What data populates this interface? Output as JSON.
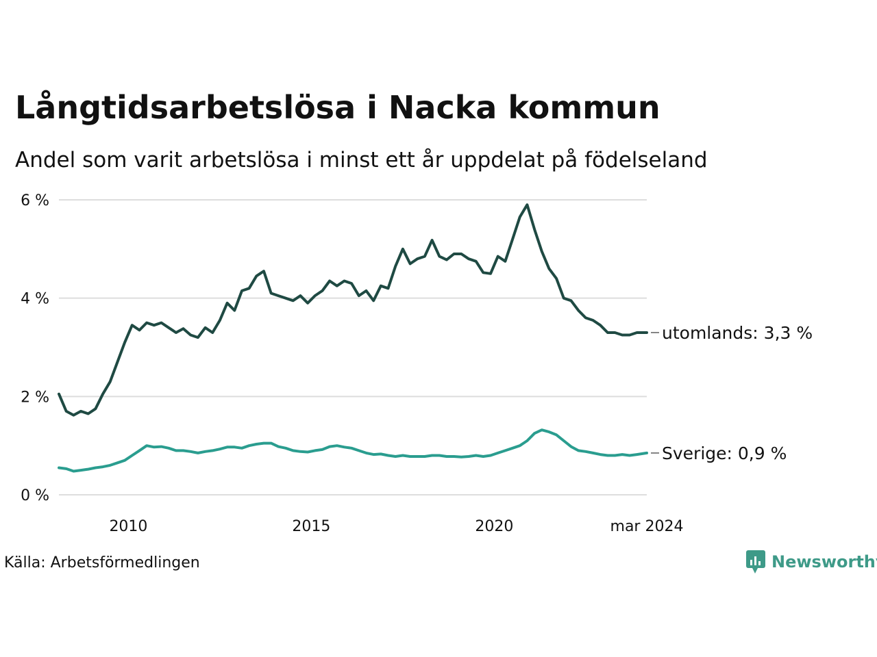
{
  "title": "Långtidsarbetslösa i Nacka kommun",
  "subtitle": "Andel som varit arbetslösa i minst ett år uppdelat på födelseland",
  "source": "Källa: Arbetsförmedlingen",
  "brand": "Newsworthy",
  "colors": {
    "utomlands": "#1f4a43",
    "sverige": "#2a9d8f",
    "grid": "#dddddd",
    "brand": "#3e9a88"
  },
  "chart_data": {
    "type": "line",
    "title": "Långtidsarbetslösa i Nacka kommun",
    "ylabel": "",
    "xlabel": "",
    "ylim": [
      0,
      6
    ],
    "xlim": [
      2008.1,
      2024.17
    ],
    "y_ticks": [
      "0 %",
      "2 %",
      "4 %",
      "6 %"
    ],
    "y_tick_values": [
      0,
      2,
      4,
      6
    ],
    "x_ticks": [
      "2010",
      "2015",
      "2020",
      "mar 2024"
    ],
    "x_tick_values": [
      2010.0,
      2015.0,
      2020.0,
      2024.17
    ],
    "grid": true,
    "series": [
      {
        "name": "utomlands",
        "label": "utomlands: 3,3 %",
        "x": [
          2008.1,
          2008.3,
          2008.5,
          2008.7,
          2008.9,
          2009.1,
          2009.3,
          2009.5,
          2009.7,
          2009.9,
          2010.1,
          2010.3,
          2010.5,
          2010.7,
          2010.9,
          2011.1,
          2011.3,
          2011.5,
          2011.7,
          2011.9,
          2012.1,
          2012.3,
          2012.5,
          2012.7,
          2012.9,
          2013.1,
          2013.3,
          2013.5,
          2013.7,
          2013.9,
          2014.1,
          2014.3,
          2014.5,
          2014.7,
          2014.9,
          2015.1,
          2015.3,
          2015.5,
          2015.7,
          2015.9,
          2016.1,
          2016.3,
          2016.5,
          2016.7,
          2016.9,
          2017.1,
          2017.3,
          2017.5,
          2017.7,
          2017.9,
          2018.1,
          2018.3,
          2018.5,
          2018.7,
          2018.9,
          2019.1,
          2019.3,
          2019.5,
          2019.7,
          2019.9,
          2020.1,
          2020.3,
          2020.5,
          2020.7,
          2020.9,
          2021.1,
          2021.3,
          2021.5,
          2021.7,
          2021.9,
          2022.1,
          2022.3,
          2022.5,
          2022.7,
          2022.9,
          2023.1,
          2023.3,
          2023.5,
          2023.7,
          2023.9,
          2024.17
        ],
        "values": [
          2.05,
          1.7,
          1.62,
          1.7,
          1.65,
          1.75,
          2.05,
          2.3,
          2.7,
          3.1,
          3.45,
          3.35,
          3.5,
          3.45,
          3.5,
          3.4,
          3.3,
          3.38,
          3.25,
          3.2,
          3.4,
          3.3,
          3.55,
          3.9,
          3.75,
          4.15,
          4.2,
          4.45,
          4.55,
          4.1,
          4.05,
          4.0,
          3.95,
          4.05,
          3.9,
          4.05,
          4.15,
          4.35,
          4.25,
          4.35,
          4.3,
          4.05,
          4.15,
          3.95,
          4.25,
          4.2,
          4.65,
          5.0,
          4.7,
          4.8,
          4.85,
          5.18,
          4.85,
          4.78,
          4.9,
          4.9,
          4.8,
          4.75,
          4.52,
          4.5,
          4.85,
          4.75,
          5.2,
          5.65,
          5.9,
          5.4,
          4.95,
          4.6,
          4.4,
          4.0,
          3.95,
          3.75,
          3.6,
          3.55,
          3.45,
          3.3,
          3.3,
          3.25,
          3.25,
          3.3,
          3.3
        ]
      },
      {
        "name": "Sverige",
        "label": "Sverige: 0,9 %",
        "x": [
          2008.1,
          2008.3,
          2008.5,
          2008.7,
          2008.9,
          2009.1,
          2009.3,
          2009.5,
          2009.7,
          2009.9,
          2010.1,
          2010.3,
          2010.5,
          2010.7,
          2010.9,
          2011.1,
          2011.3,
          2011.5,
          2011.7,
          2011.9,
          2012.1,
          2012.3,
          2012.5,
          2012.7,
          2012.9,
          2013.1,
          2013.3,
          2013.5,
          2013.7,
          2013.9,
          2014.1,
          2014.3,
          2014.5,
          2014.7,
          2014.9,
          2015.1,
          2015.3,
          2015.5,
          2015.7,
          2015.9,
          2016.1,
          2016.3,
          2016.5,
          2016.7,
          2016.9,
          2017.1,
          2017.3,
          2017.5,
          2017.7,
          2017.9,
          2018.1,
          2018.3,
          2018.5,
          2018.7,
          2018.9,
          2019.1,
          2019.3,
          2019.5,
          2019.7,
          2019.9,
          2020.1,
          2020.3,
          2020.5,
          2020.7,
          2020.9,
          2021.1,
          2021.3,
          2021.5,
          2021.7,
          2021.9,
          2022.1,
          2022.3,
          2022.5,
          2022.7,
          2022.9,
          2023.1,
          2023.3,
          2023.5,
          2023.7,
          2023.9,
          2024.17
        ],
        "values": [
          0.55,
          0.53,
          0.48,
          0.5,
          0.52,
          0.55,
          0.57,
          0.6,
          0.65,
          0.7,
          0.8,
          0.9,
          1.0,
          0.97,
          0.98,
          0.95,
          0.9,
          0.9,
          0.88,
          0.85,
          0.88,
          0.9,
          0.93,
          0.97,
          0.97,
          0.95,
          1.0,
          1.03,
          1.05,
          1.05,
          0.98,
          0.95,
          0.9,
          0.88,
          0.87,
          0.9,
          0.92,
          0.98,
          1.0,
          0.97,
          0.95,
          0.9,
          0.85,
          0.82,
          0.83,
          0.8,
          0.78,
          0.8,
          0.78,
          0.78,
          0.78,
          0.8,
          0.8,
          0.78,
          0.78,
          0.77,
          0.78,
          0.8,
          0.78,
          0.8,
          0.85,
          0.9,
          0.95,
          1.0,
          1.1,
          1.25,
          1.32,
          1.28,
          1.22,
          1.1,
          0.98,
          0.9,
          0.88,
          0.85,
          0.82,
          0.8,
          0.8,
          0.82,
          0.8,
          0.82,
          0.85
        ]
      }
    ]
  }
}
